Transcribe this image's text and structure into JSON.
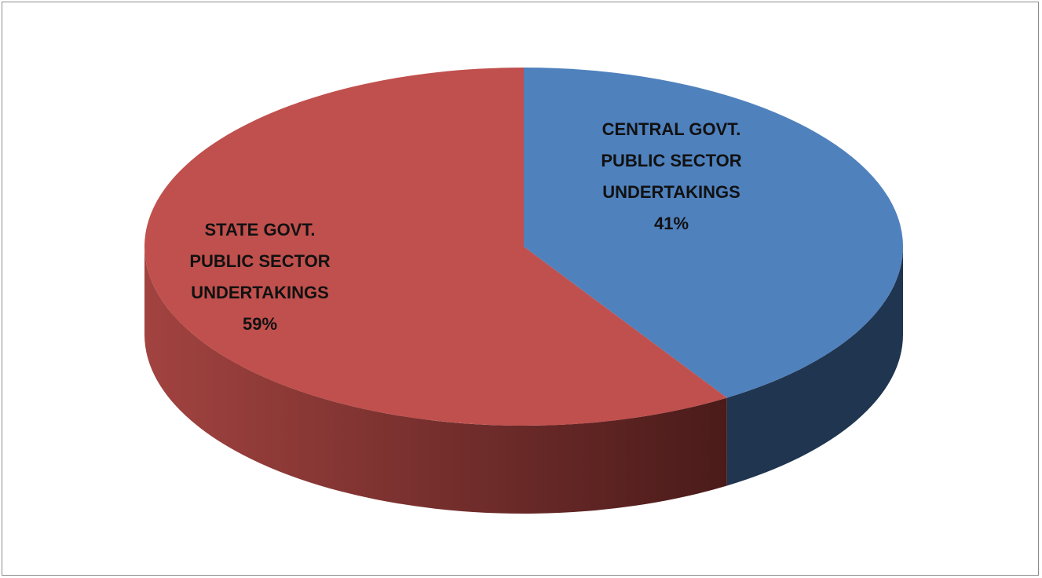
{
  "chart_data": {
    "type": "pie",
    "style": "3d",
    "title": "",
    "slices": [
      {
        "name": "CENTRAL GOVT. PUBLIC SECTOR UNDERTAKINGS",
        "label_lines": [
          "CENTRAL GOVT.",
          "PUBLIC SECTOR",
          "UNDERTAKINGS"
        ],
        "percent_label": "41%",
        "value": 41,
        "color": "#4f81bd",
        "side_color": "#1f3550"
      },
      {
        "name": "STATE GOVT. PUBLIC SECTOR UNDERTAKINGS",
        "label_lines": [
          "STATE GOVT.",
          "PUBLIC SECTOR",
          "UNDERTAKINGS"
        ],
        "percent_label": "59%",
        "value": 59,
        "color": "#c0504d",
        "side_color_light": "#a24340",
        "side_color_dark": "#4a1b1a"
      }
    ],
    "legend": "none",
    "data_labels": "inside"
  }
}
